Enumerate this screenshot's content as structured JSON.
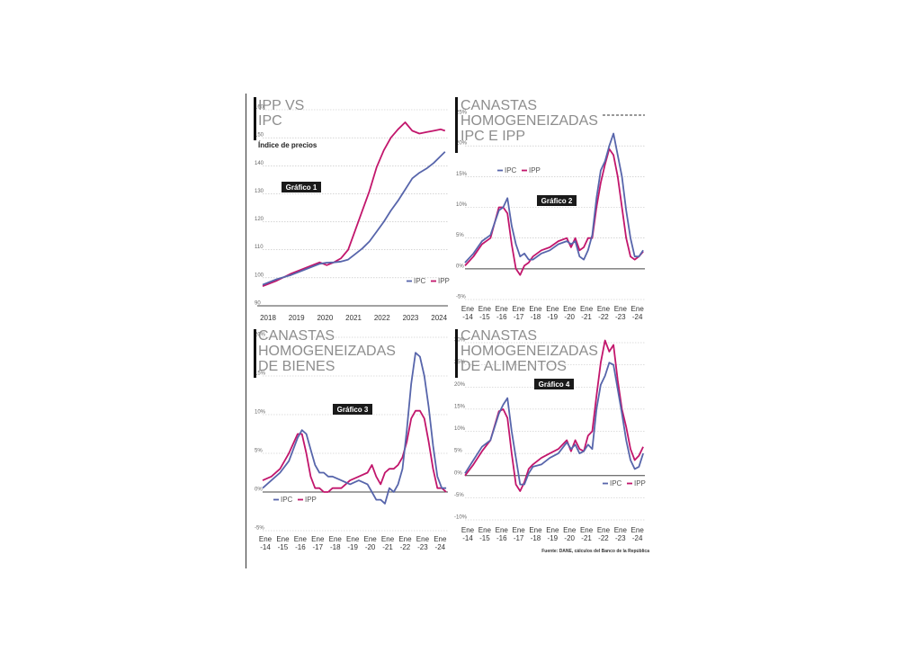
{
  "source": "Fuente: DANE, cálculos del Banco de la República",
  "colors": {
    "ipc": "#5765ab",
    "ipp": "#c2166c",
    "badge": "#1a1a1a"
  },
  "chart_data": [
    {
      "type": "line",
      "title_lines": [
        "IPP VS",
        "IPC"
      ],
      "subtitle": "Índice de precios",
      "badge": "Gráfico 1",
      "ylim": [
        90,
        160
      ],
      "yticks": [
        90,
        100,
        110,
        120,
        130,
        140,
        150,
        160
      ],
      "ytick_labels": [
        "90",
        "100",
        "110",
        "120",
        "130",
        "140",
        "150",
        "160"
      ],
      "xlim": [
        2018,
        2024.5
      ],
      "xticks": [
        2018,
        2019,
        2020,
        2021,
        2022,
        2023,
        2024
      ],
      "xtick_labels": [
        "2018",
        "2019",
        "2020",
        "2021",
        "2022",
        "2023",
        "2024"
      ],
      "x": [
        2018.0,
        2018.5,
        2019.0,
        2019.5,
        2020.0,
        2020.25,
        2020.5,
        2020.75,
        2021.0,
        2021.25,
        2021.5,
        2021.75,
        2022.0,
        2022.25,
        2022.5,
        2022.75,
        2023.0,
        2023.25,
        2023.5,
        2023.75,
        2024.0,
        2024.25,
        2024.4
      ],
      "series": [
        {
          "name": "IPC",
          "values": [
            97.5,
            99.5,
            101.0,
            103.0,
            105.0,
            105.4,
            105.5,
            105.8,
            106.5,
            108.5,
            110.5,
            113.0,
            116.5,
            120.0,
            124.0,
            127.5,
            131.5,
            135.5,
            137.5,
            139.0,
            141.0,
            143.5,
            145.0
          ]
        },
        {
          "name": "IPP",
          "values": [
            97.0,
            99.0,
            101.5,
            103.5,
            105.5,
            104.5,
            105.5,
            107.0,
            110.0,
            117.0,
            124.0,
            131.0,
            139.5,
            145.5,
            150.0,
            153.0,
            155.5,
            152.5,
            151.5,
            152.0,
            152.5,
            153.0,
            152.5
          ]
        }
      ],
      "legend": "bottom-right"
    },
    {
      "type": "line",
      "title_lines": [
        "CANASTAS",
        "HOMOGENEIZADAS",
        "IPC E IPP"
      ],
      "badge": "Gráfico 2",
      "ylim": [
        -5,
        25
      ],
      "yticks": [
        -5,
        0,
        5,
        10,
        15,
        20,
        25
      ],
      "ytick_labels": [
        "-5%",
        "0%",
        "5%",
        "10%",
        "15%",
        "20%",
        "25%"
      ],
      "xlim": [
        2014,
        2024.6
      ],
      "xticks": [
        2014,
        2015,
        2016,
        2017,
        2018,
        2019,
        2020,
        2021,
        2022,
        2023,
        2024
      ],
      "xtick_labels": [
        "Ene -14",
        "Ene -15",
        "Ene -16",
        "Ene -17",
        "Ene -18",
        "Ene -19",
        "Ene -20",
        "Ene -21",
        "Ene -22",
        "Ene -23",
        "Ene -24"
      ],
      "x": [
        2014.0,
        2014.5,
        2015.0,
        2015.5,
        2016.0,
        2016.25,
        2016.5,
        2016.75,
        2017.0,
        2017.25,
        2017.5,
        2017.75,
        2018.0,
        2018.5,
        2019.0,
        2019.5,
        2020.0,
        2020.25,
        2020.5,
        2020.75,
        2021.0,
        2021.25,
        2021.5,
        2021.75,
        2022.0,
        2022.25,
        2022.5,
        2022.75,
        2023.0,
        2023.25,
        2023.5,
        2023.75,
        2024.0,
        2024.25,
        2024.5
      ],
      "series": [
        {
          "name": "IPC",
          "values": [
            1.0,
            2.5,
            4.5,
            5.5,
            9.5,
            10.0,
            11.5,
            7.0,
            4.0,
            2.0,
            2.5,
            1.5,
            1.5,
            2.5,
            3.0,
            4.0,
            4.5,
            4.0,
            4.5,
            2.0,
            1.5,
            3.0,
            5.5,
            11.5,
            16.0,
            17.5,
            20.0,
            22.0,
            18.5,
            15.0,
            9.5,
            5.0,
            2.0,
            2.0,
            3.0
          ]
        },
        {
          "name": "IPP",
          "values": [
            0.5,
            2.0,
            4.0,
            5.0,
            10.0,
            10.0,
            9.0,
            4.0,
            0.0,
            -1.0,
            0.5,
            1.0,
            2.0,
            3.0,
            3.5,
            4.5,
            5.0,
            3.5,
            5.0,
            3.0,
            3.5,
            5.0,
            5.0,
            10.0,
            14.0,
            17.0,
            19.5,
            18.5,
            15.0,
            10.0,
            5.0,
            2.0,
            1.5,
            2.0,
            2.8
          ]
        }
      ],
      "legend": "top-left"
    },
    {
      "type": "line",
      "title_lines": [
        "CANASTAS",
        "HOMOGENEIZADAS",
        "DE BIENES"
      ],
      "badge": "Gráfico 3",
      "ylim": [
        -5,
        20
      ],
      "yticks": [
        -5,
        0,
        5,
        10,
        15,
        20
      ],
      "ytick_labels": [
        "-5%",
        "0%",
        "5%",
        "10%",
        "15%",
        "20%"
      ],
      "xlim": [
        2014,
        2024.6
      ],
      "xticks": [
        2014,
        2015,
        2016,
        2017,
        2018,
        2019,
        2020,
        2021,
        2022,
        2023,
        2024
      ],
      "xtick_labels": [
        "Ene -14",
        "Ene -15",
        "Ene -16",
        "Ene -17",
        "Ene -18",
        "Ene -19",
        "Ene -20",
        "Ene -21",
        "Ene -22",
        "Ene -23",
        "Ene -24"
      ],
      "x": [
        2014.0,
        2014.5,
        2015.0,
        2015.5,
        2016.0,
        2016.25,
        2016.5,
        2016.75,
        2017.0,
        2017.25,
        2017.5,
        2017.75,
        2018.0,
        2018.5,
        2019.0,
        2019.5,
        2020.0,
        2020.25,
        2020.5,
        2020.75,
        2021.0,
        2021.25,
        2021.5,
        2021.75,
        2022.0,
        2022.25,
        2022.5,
        2022.75,
        2023.0,
        2023.25,
        2023.5,
        2023.75,
        2024.0,
        2024.25,
        2024.5
      ],
      "series": [
        {
          "name": "IPC",
          "values": [
            0.5,
            1.5,
            2.5,
            4.0,
            7.0,
            8.0,
            7.5,
            5.5,
            3.5,
            2.5,
            2.5,
            2.0,
            2.0,
            1.5,
            1.0,
            1.5,
            1.0,
            0.0,
            -1.0,
            -1.0,
            -1.5,
            0.5,
            0.0,
            1.0,
            3.0,
            8.0,
            14.0,
            18.0,
            17.5,
            15.0,
            11.0,
            6.0,
            2.0,
            0.5,
            0.5
          ]
        },
        {
          "name": "IPP",
          "values": [
            1.5,
            2.0,
            3.0,
            5.0,
            7.5,
            7.5,
            5.0,
            2.0,
            0.5,
            0.5,
            0.0,
            0.0,
            0.5,
            0.5,
            1.5,
            2.0,
            2.5,
            3.5,
            2.0,
            1.0,
            2.5,
            3.0,
            3.0,
            3.5,
            4.5,
            6.5,
            9.5,
            10.5,
            10.5,
            9.5,
            6.5,
            3.0,
            0.5,
            0.5,
            0.0
          ]
        }
      ],
      "legend": "bottom-left"
    },
    {
      "type": "line",
      "title_lines": [
        "CANASTAS",
        "HOMOGENEIZADAS",
        "DE ALIMENTOS"
      ],
      "badge": "Gráfico 4",
      "ylim": [
        -10,
        30
      ],
      "yticks": [
        -10,
        -5,
        0,
        5,
        10,
        15,
        20,
        25,
        30
      ],
      "ytick_labels": [
        "-10%",
        "-5%",
        "0%",
        "5%",
        "10%",
        "15%",
        "20%",
        "25%",
        "30%"
      ],
      "xlim": [
        2014,
        2024.6
      ],
      "xticks": [
        2014,
        2015,
        2016,
        2017,
        2018,
        2019,
        2020,
        2021,
        2022,
        2023,
        2024
      ],
      "xtick_labels": [
        "Ene -14",
        "Ene -15",
        "Ene -16",
        "Ene -17",
        "Ene -18",
        "Ene -19",
        "Ene -20",
        "Ene -21",
        "Ene -22",
        "Ene -23",
        "Ene -24"
      ],
      "x": [
        2014.0,
        2014.5,
        2015.0,
        2015.5,
        2016.0,
        2016.25,
        2016.5,
        2016.75,
        2017.0,
        2017.25,
        2017.5,
        2017.75,
        2018.0,
        2018.5,
        2019.0,
        2019.5,
        2020.0,
        2020.25,
        2020.5,
        2020.75,
        2021.0,
        2021.25,
        2021.5,
        2021.75,
        2022.0,
        2022.25,
        2022.5,
        2022.75,
        2023.0,
        2023.25,
        2023.5,
        2023.75,
        2024.0,
        2024.25,
        2024.5
      ],
      "series": [
        {
          "name": "IPC",
          "values": [
            0.5,
            3.5,
            6.5,
            8.0,
            14.0,
            16.0,
            17.5,
            10.0,
            4.0,
            -2.0,
            -2.0,
            0.5,
            2.0,
            2.5,
            4.0,
            5.0,
            7.5,
            6.0,
            7.0,
            5.0,
            5.5,
            7.0,
            6.0,
            15.0,
            20.5,
            22.5,
            25.5,
            25.0,
            19.5,
            14.0,
            8.0,
            3.5,
            1.5,
            2.0,
            5.0
          ]
        },
        {
          "name": "IPP",
          "values": [
            0.0,
            2.5,
            5.5,
            8.0,
            14.5,
            15.0,
            13.0,
            5.0,
            -2.0,
            -3.5,
            -1.5,
            1.5,
            2.5,
            4.0,
            5.0,
            6.0,
            8.0,
            5.5,
            8.0,
            6.0,
            5.5,
            9.0,
            10.0,
            18.0,
            25.5,
            30.5,
            28.0,
            29.5,
            21.5,
            15.0,
            11.0,
            6.0,
            3.5,
            4.5,
            6.5
          ]
        }
      ],
      "legend": "bottom-right"
    }
  ]
}
